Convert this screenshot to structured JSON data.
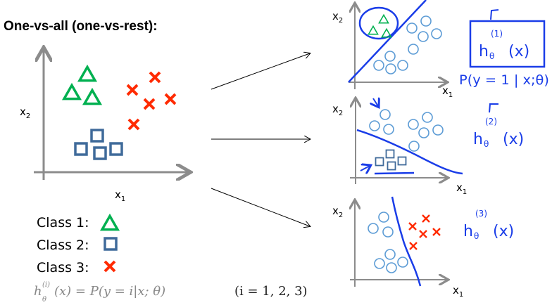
{
  "title": "One-vs-all (one-vs-rest):",
  "main_plot": {
    "xlabel": "x",
    "xlabel_sub": "1",
    "ylabel": "x",
    "ylabel_sub": "2"
  },
  "legend": [
    {
      "label": "Class 1:",
      "marker": "triangle",
      "color": "#00b050"
    },
    {
      "label": "Class 2:",
      "marker": "square",
      "color": "#3f6a9a"
    },
    {
      "label": "Class 3:",
      "marker": "x",
      "color": "#ff2a00"
    }
  ],
  "formula": "h",
  "formula_sup": "(i)",
  "formula_sub": "θ",
  "formula_rest": "(x) = P(y = i|x; θ)",
  "formula_range": "(i = 1, 2, 3)",
  "panels": [
    {
      "xlabel": "x",
      "xlabel_sub": "1",
      "ylabel": "x",
      "ylabel_sub": "2",
      "note_h": "h",
      "note_sub": "θ",
      "note_sup": "(1)",
      "note_arg": "(x)",
      "note_prob": "P(y = 1 | x;θ)"
    },
    {
      "xlabel": "x",
      "xlabel_sub": "1",
      "ylabel": "x",
      "ylabel_sub": "2",
      "note_h": "h",
      "note_sub": "θ",
      "note_sup": "(2)",
      "note_arg": "(x)"
    },
    {
      "xlabel": "x",
      "xlabel_sub": "1",
      "ylabel": "x",
      "ylabel_sub": "2",
      "note_h": "h",
      "note_sub": "θ",
      "note_sup": "(3)",
      "note_arg": "(x)"
    }
  ],
  "colors": {
    "class1": "#00b050",
    "class2": "#3f6a9a",
    "class3": "#ff2a00",
    "rest": "#5b9bd5",
    "ink": "#1a3de8",
    "axis": "#8c8c8c"
  }
}
